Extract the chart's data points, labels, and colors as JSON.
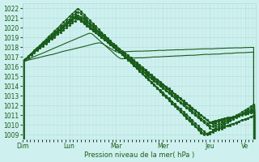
{
  "title": "",
  "xlabel": "Pression niveau de la mer( hPa )",
  "ylabel": "",
  "ylim": [
    1008.5,
    1022.5
  ],
  "xtick_labels": [
    "Dim",
    "Lun",
    "Mar",
    "Mer",
    "Jeu",
    "Ve"
  ],
  "xtick_positions": [
    0,
    48,
    96,
    144,
    192,
    228
  ],
  "n_points": 240,
  "background_color": "#cef0ee",
  "grid_color": "#aadddd",
  "line_color": "#1a5c1a",
  "line_width": 0.8,
  "marker_size": 1.2
}
